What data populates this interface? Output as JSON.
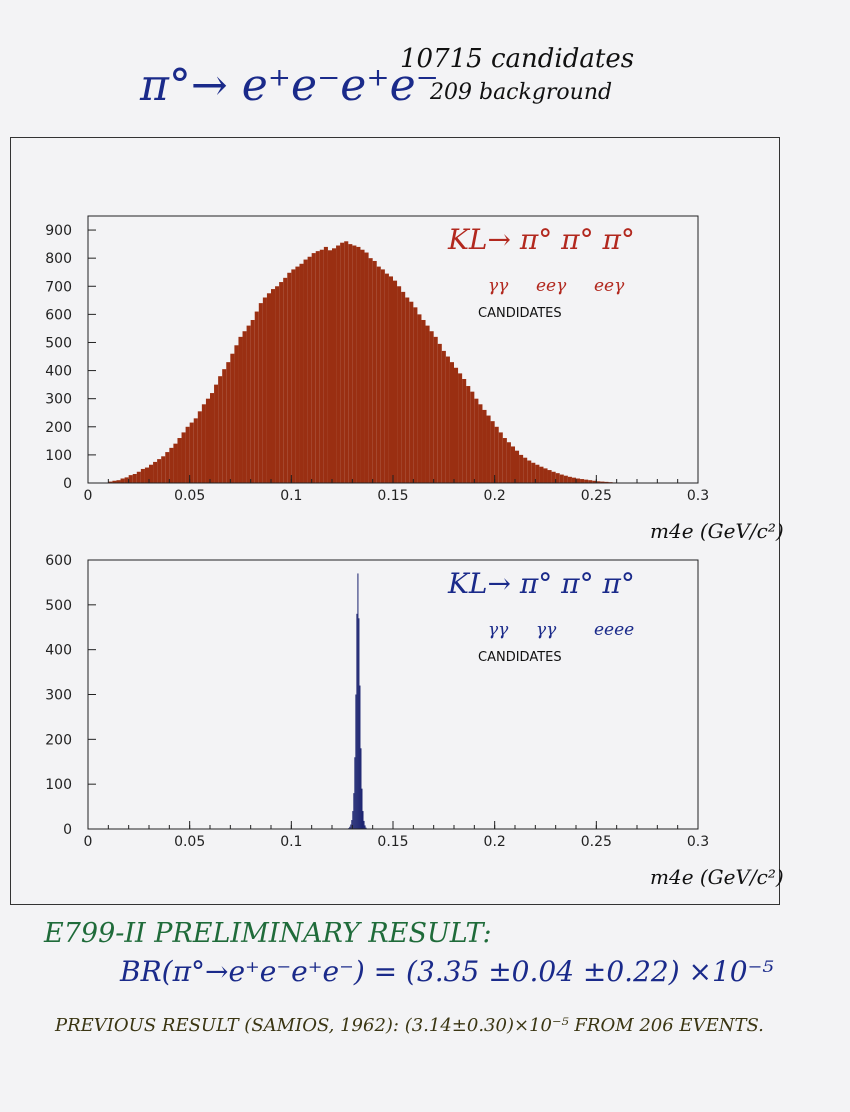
{
  "header": {
    "title": "π°→ e⁺e⁻e⁺e⁻",
    "candidates": "10715 candidates",
    "background": "209 background"
  },
  "charts": {
    "xlabel": "m4e (GeV/c²)"
  },
  "colors": {
    "top_fill": "#9a2f12",
    "bottom_fill": "#1c2470",
    "annotation_red": "#b2281e",
    "annotation_blue": "#1a2a8a"
  },
  "chart_data": [
    {
      "type": "bar",
      "xlim": [
        0,
        0.3
      ],
      "ylim": [
        0,
        950
      ],
      "xticks": [
        "0",
        "0.05",
        "0.1",
        "0.15",
        "0.2",
        "0.25",
        "0.3"
      ],
      "yticks": [
        "0",
        "100",
        "200",
        "300",
        "400",
        "500",
        "600",
        "700",
        "800",
        "900"
      ],
      "xlabel": "m4e (GeV/c²)",
      "annotation": {
        "decay": "KL→ π° π° π°",
        "sub1": "γγ",
        "sub2": "eeγ",
        "sub3": "eeγ",
        "label": "CANDIDATES"
      },
      "bin_width": 0.002,
      "x_start": 0.01,
      "values": [
        5,
        8,
        10,
        16,
        20,
        28,
        32,
        40,
        50,
        55,
        65,
        75,
        85,
        95,
        110,
        125,
        140,
        160,
        180,
        200,
        215,
        230,
        255,
        280,
        300,
        320,
        350,
        380,
        405,
        430,
        460,
        490,
        520,
        540,
        560,
        580,
        610,
        640,
        660,
        675,
        690,
        700,
        715,
        730,
        748,
        760,
        770,
        780,
        795,
        805,
        818,
        825,
        830,
        840,
        828,
        835,
        845,
        855,
        860,
        850,
        845,
        840,
        830,
        820,
        800,
        790,
        770,
        760,
        745,
        735,
        720,
        700,
        680,
        660,
        645,
        625,
        600,
        580,
        560,
        540,
        520,
        495,
        470,
        450,
        430,
        410,
        390,
        370,
        345,
        325,
        300,
        280,
        260,
        240,
        220,
        200,
        180,
        160,
        145,
        130,
        115,
        100,
        90,
        80,
        72,
        65,
        58,
        52,
        46,
        40,
        35,
        30,
        26,
        22,
        19,
        16,
        14,
        12,
        10,
        8,
        6,
        5,
        4,
        3,
        2,
        1,
        1,
        0,
        0,
        0,
        0,
        0,
        0,
        0,
        0,
        0,
        0,
        0,
        0,
        0,
        0,
        0,
        0
      ]
    },
    {
      "type": "bar",
      "xlim": [
        0,
        0.3
      ],
      "ylim": [
        0,
        600
      ],
      "xticks": [
        "0",
        "0.05",
        "0.1",
        "0.15",
        "0.2",
        "0.25",
        "0.3"
      ],
      "yticks": [
        "0",
        "100",
        "200",
        "300",
        "400",
        "500",
        "600"
      ],
      "xlabel": "m4e (GeV/c²)",
      "annotation": {
        "decay": "KL→ π° π° π°",
        "sub1": "γγ",
        "sub2": "γγ",
        "sub3": "eeee",
        "label": "CANDIDATES"
      },
      "bin_width": 0.0005,
      "x_start": 0.128,
      "values": [
        2,
        5,
        10,
        20,
        40,
        80,
        160,
        300,
        480,
        570,
        470,
        320,
        180,
        90,
        40,
        18,
        8,
        3,
        1
      ]
    }
  ],
  "footer": {
    "line1": "E799-II PRELIMINARY RESULT:",
    "line2": "BR(π°→e⁺e⁻e⁺e⁻) = (3.35 ±0.04 ±0.22) ×10⁻⁵",
    "line3": "PREVIOUS RESULT (SAMIOS, 1962): (3.14±0.30)×10⁻⁵    FROM 206 EVENTS."
  }
}
